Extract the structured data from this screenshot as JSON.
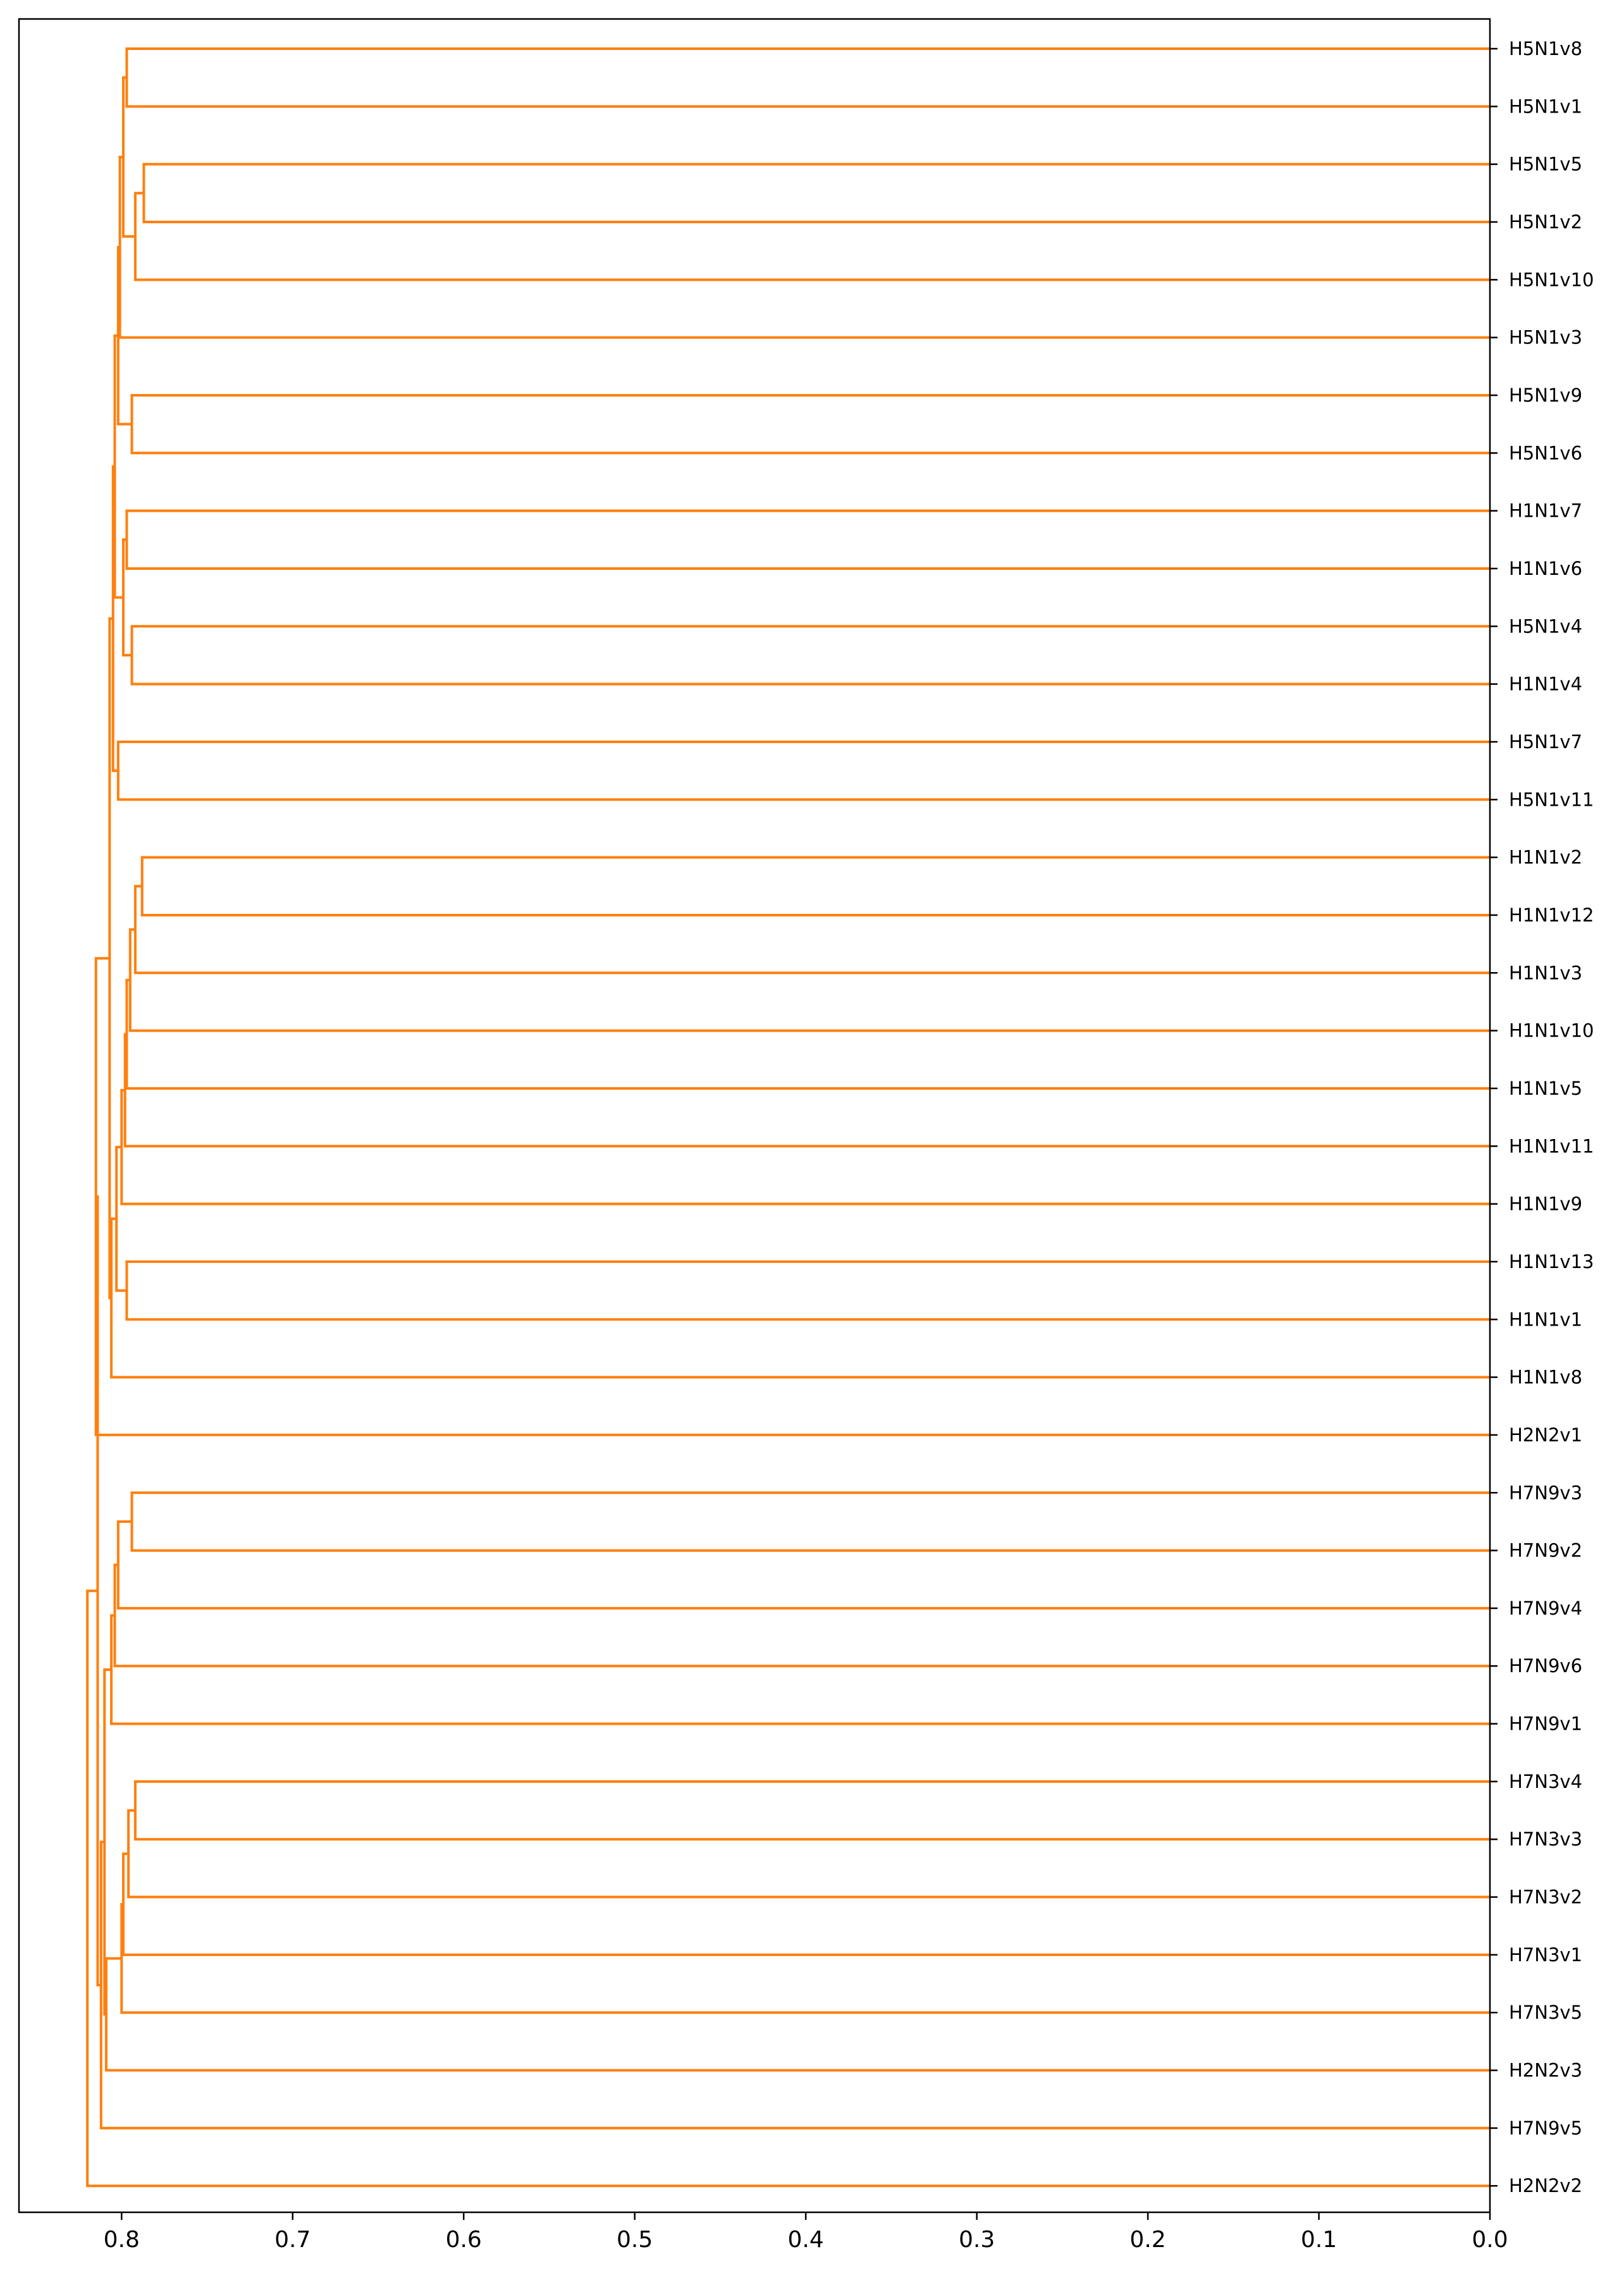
{
  "chart_data": {
    "type": "dendrogram",
    "orientation": "left",
    "title": "",
    "xlabel": "",
    "ylabel": "",
    "xlim": [
      0.86,
      0.0
    ],
    "x_ticks": [
      0.8,
      0.7,
      0.6,
      0.5,
      0.4,
      0.3,
      0.2,
      0.1,
      0.0
    ],
    "x_tick_labels": [
      "0.8",
      "0.7",
      "0.6",
      "0.5",
      "0.4",
      "0.3",
      "0.2",
      "0.1",
      "0.0"
    ],
    "link_color": "#ff7f0e",
    "leaves": [
      "H5N1v8",
      "H5N1v1",
      "H5N1v5",
      "H5N1v2",
      "H5N1v10",
      "H5N1v3",
      "H5N1v9",
      "H5N1v6",
      "H1N1v7",
      "H1N1v6",
      "H5N1v4",
      "H1N1v4",
      "H5N1v7",
      "H5N1v11",
      "H1N1v2",
      "H1N1v12",
      "H1N1v3",
      "H1N1v10",
      "H1N1v5",
      "H1N1v11",
      "H1N1v9",
      "H1N1v13",
      "H1N1v1",
      "H1N1v8",
      "H2N2v1",
      "H7N9v3",
      "H7N9v2",
      "H7N9v4",
      "H7N9v6",
      "H7N9v1",
      "H7N3v4",
      "H7N3v3",
      "H7N3v2",
      "H7N3v1",
      "H7N3v5",
      "H2N2v3",
      "H7N9v5",
      "H2N2v2"
    ],
    "merges": [
      {
        "children": [
          "H5N1v8",
          "H5N1v1"
        ],
        "height": 0.797
      },
      {
        "children": [
          "H5N1v5",
          "H5N1v2"
        ],
        "height": 0.787
      },
      {
        "children": [
          "#1",
          "H5N1v10"
        ],
        "height": 0.792
      },
      {
        "children": [
          "#0",
          "#2"
        ],
        "height": 0.799
      },
      {
        "children": [
          "#3",
          "H5N1v3"
        ],
        "height": 0.801
      },
      {
        "children": [
          "H5N1v9",
          "H5N1v6"
        ],
        "height": 0.794
      },
      {
        "children": [
          "#4",
          "#5"
        ],
        "height": 0.802
      },
      {
        "children": [
          "H1N1v7",
          "H1N1v6"
        ],
        "height": 0.797
      },
      {
        "children": [
          "H5N1v4",
          "H1N1v4"
        ],
        "height": 0.794
      },
      {
        "children": [
          "#7",
          "#8"
        ],
        "height": 0.799
      },
      {
        "children": [
          "#6",
          "#9"
        ],
        "height": 0.804
      },
      {
        "children": [
          "H5N1v7",
          "H5N1v11"
        ],
        "height": 0.802
      },
      {
        "children": [
          "#10",
          "#11"
        ],
        "height": 0.805
      },
      {
        "children": [
          "H1N1v2",
          "H1N1v12"
        ],
        "height": 0.788
      },
      {
        "children": [
          "#13",
          "H1N1v3"
        ],
        "height": 0.792
      },
      {
        "children": [
          "#14",
          "H1N1v10"
        ],
        "height": 0.795
      },
      {
        "children": [
          "#15",
          "H1N1v5"
        ],
        "height": 0.797
      },
      {
        "children": [
          "#16",
          "H1N1v11"
        ],
        "height": 0.798
      },
      {
        "children": [
          "#17",
          "H1N1v9"
        ],
        "height": 0.8
      },
      {
        "children": [
          "H1N1v13",
          "H1N1v1"
        ],
        "height": 0.797
      },
      {
        "children": [
          "#18",
          "#19"
        ],
        "height": 0.803
      },
      {
        "children": [
          "#20",
          "H1N1v8"
        ],
        "height": 0.806
      },
      {
        "children": [
          "#12",
          "#21"
        ],
        "height": 0.807
      },
      {
        "children": [
          "#22",
          "H2N2v1"
        ],
        "height": 0.815
      },
      {
        "children": [
          "H7N9v3",
          "H7N9v2"
        ],
        "height": 0.794
      },
      {
        "children": [
          "#24",
          "H7N9v4"
        ],
        "height": 0.802
      },
      {
        "children": [
          "#25",
          "H7N9v6"
        ],
        "height": 0.804
      },
      {
        "children": [
          "#26",
          "H7N9v1"
        ],
        "height": 0.806
      },
      {
        "children": [
          "H7N3v4",
          "H7N3v3"
        ],
        "height": 0.792
      },
      {
        "children": [
          "#28",
          "H7N3v2"
        ],
        "height": 0.796
      },
      {
        "children": [
          "#29",
          "H7N3v1"
        ],
        "height": 0.799
      },
      {
        "children": [
          "#30",
          "H7N3v5"
        ],
        "height": 0.8
      },
      {
        "children": [
          "#31",
          "H2N2v3"
        ],
        "height": 0.809
      },
      {
        "children": [
          "#27",
          "#32"
        ],
        "height": 0.81
      },
      {
        "children": [
          "#33",
          "H7N9v5"
        ],
        "height": 0.812
      },
      {
        "children": [
          "#23",
          "#34"
        ],
        "height": 0.814
      },
      {
        "children": [
          "#35",
          "H2N2v2"
        ],
        "height": 0.82
      }
    ]
  }
}
